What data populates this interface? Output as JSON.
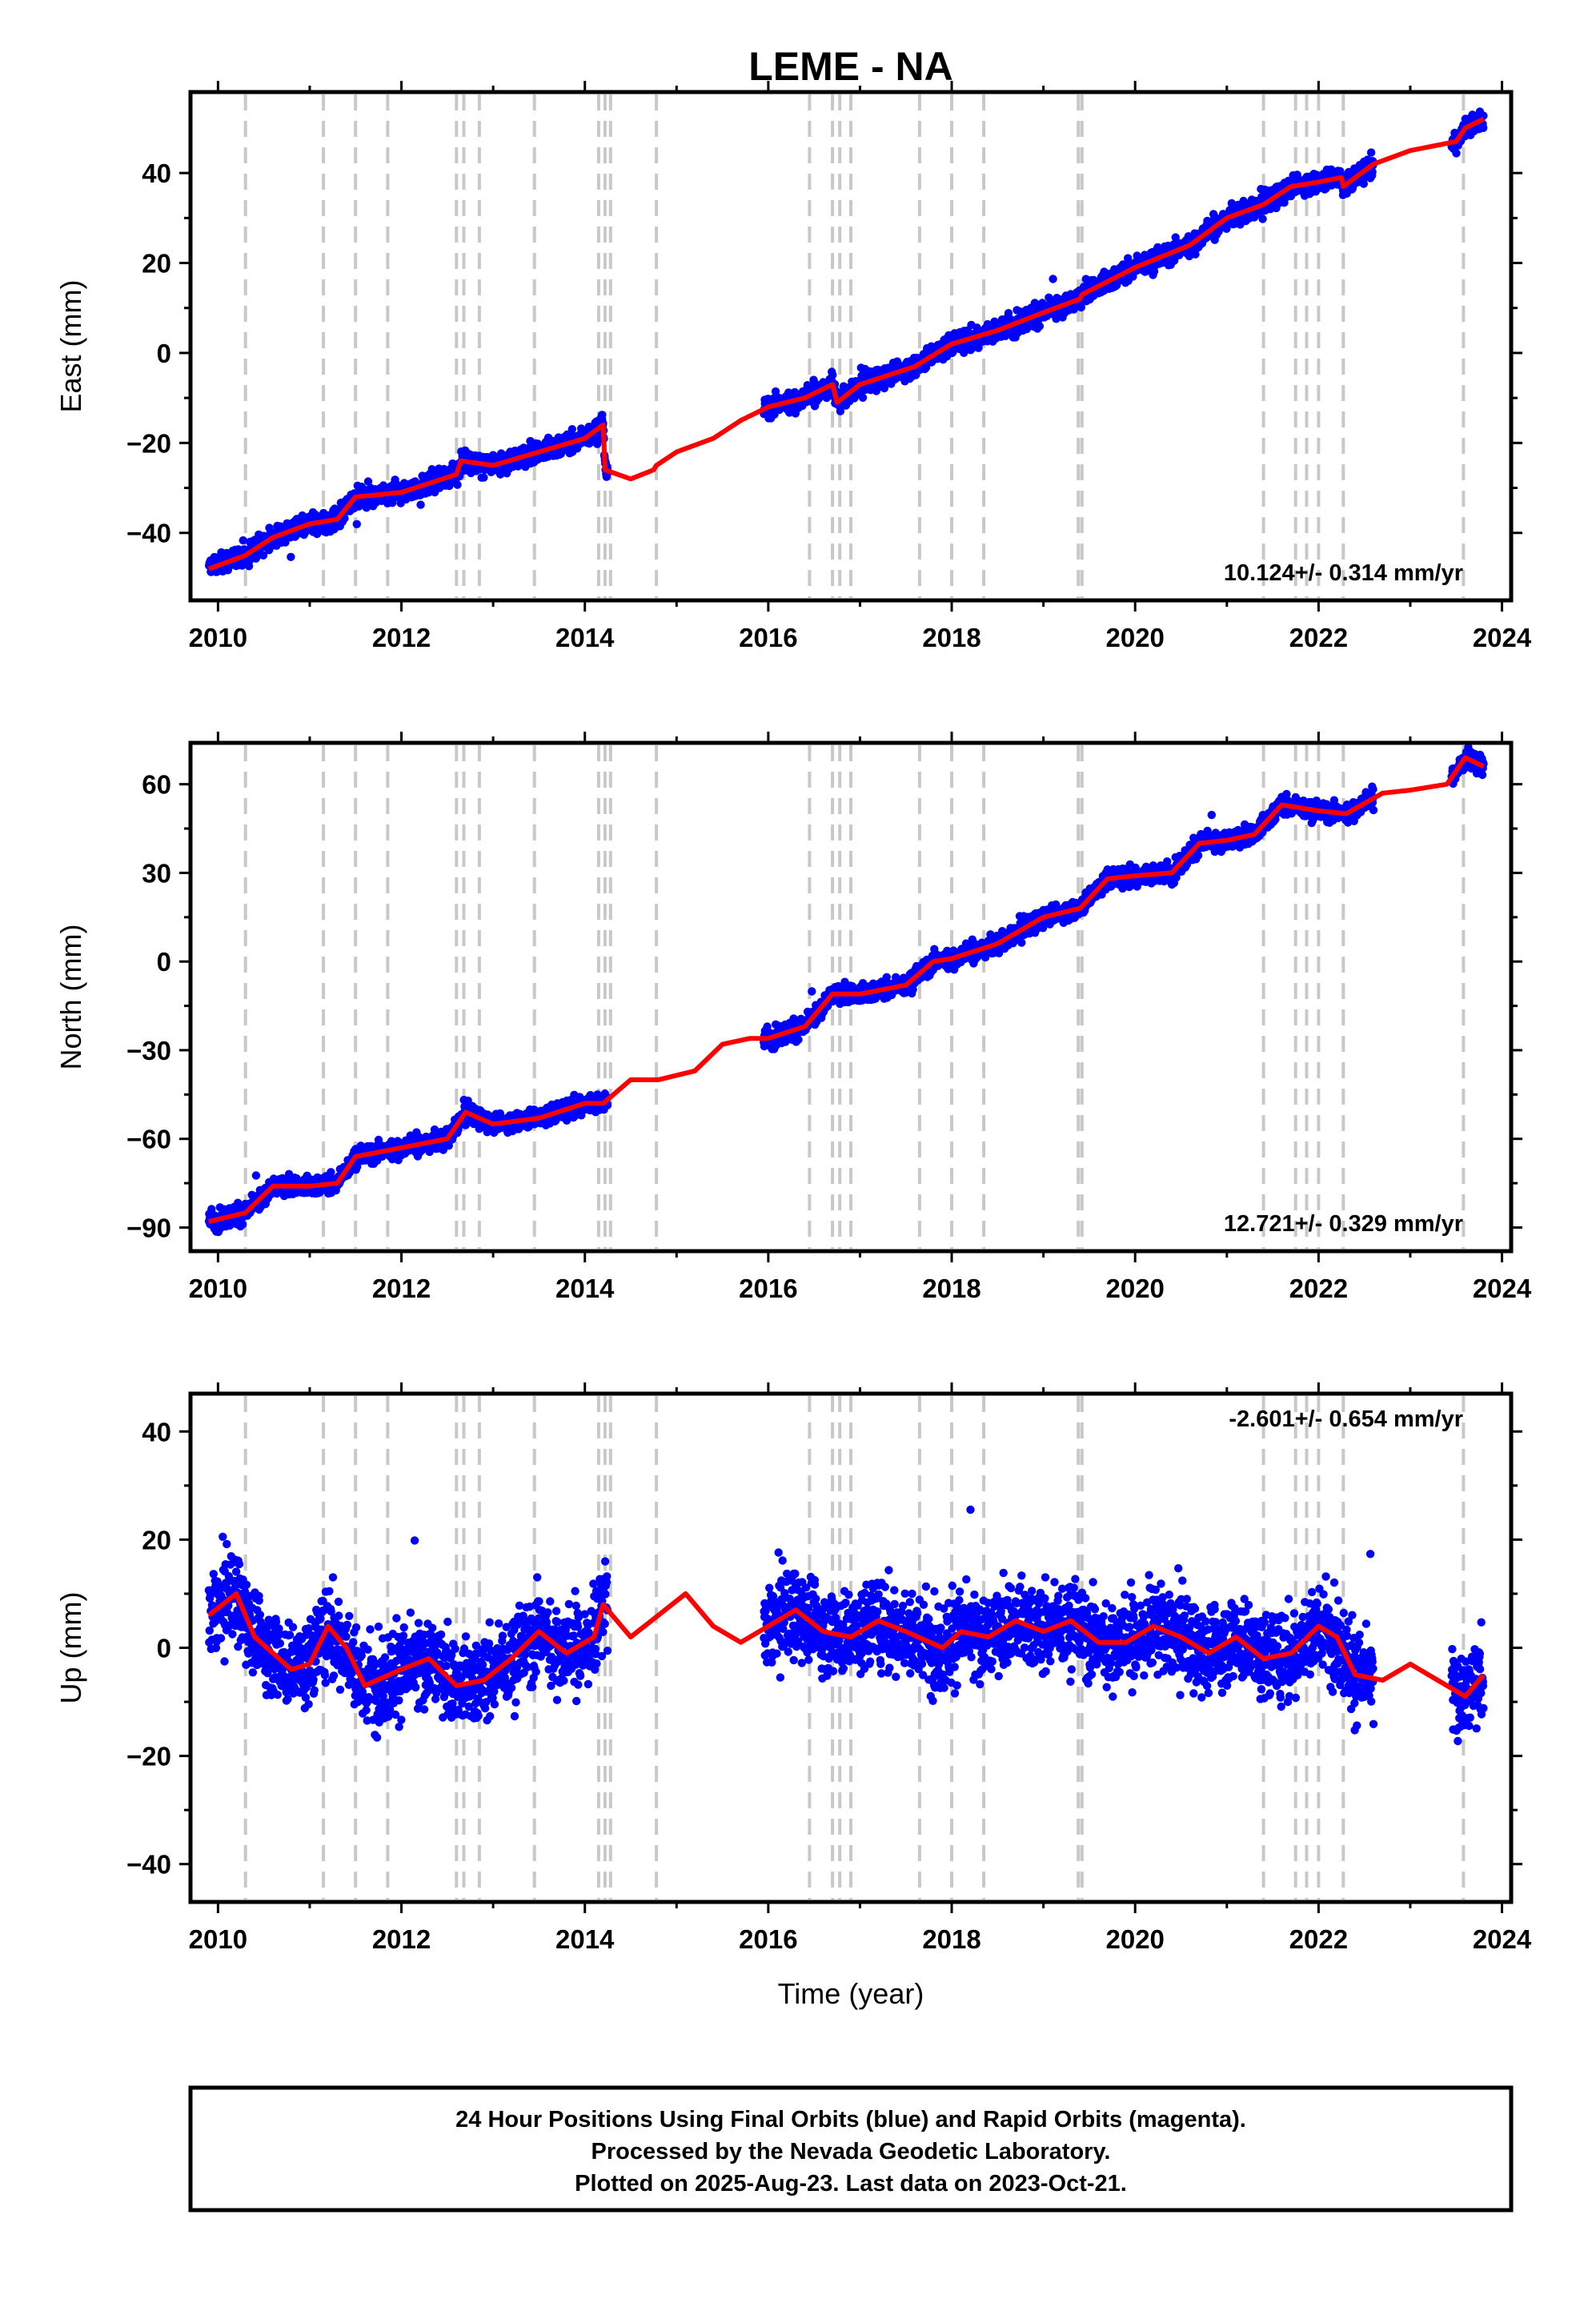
{
  "title": "LEME - NA",
  "xlabel": "Time (year)",
  "footer": {
    "line1": "24 Hour Positions Using Final Orbits (blue) and Rapid Orbits (magenta).",
    "line2": "Processed by the Nevada Geodetic Laboratory.",
    "line3": "Plotted on 2025-Aug-23. Last data on 2023-Oct-21."
  },
  "colors": {
    "data": "#0000ff",
    "model": "#ff0000",
    "steps": "#c8c8c8"
  },
  "chart_data": [
    {
      "type": "scatter",
      "component": "east",
      "ylabel": "East (mm)",
      "rate_label": "10.124+/- 0.314 mm/yr",
      "xlim": [
        2009.7,
        2024.1
      ],
      "ylim": [
        -55,
        58
      ],
      "xticks": [
        2010,
        2012,
        2014,
        2016,
        2018,
        2020,
        2022,
        2024
      ],
      "yticks": [
        -40,
        -20,
        0,
        20,
        40
      ],
      "grid": false,
      "data_segments": [
        [
          2009.9,
          2014.25
        ],
        [
          2015.95,
          2022.6
        ],
        [
          2023.45,
          2023.8
        ]
      ],
      "series": [
        {
          "name": "",
          "kind": "model",
          "x": [
            2009.9,
            2010.3,
            2010.6,
            2011.0,
            2011.3,
            2011.5,
            2012.0,
            2012.6,
            2012.65,
            2013.0,
            2013.5,
            2014.0,
            2014.2,
            2014.22,
            2014.5,
            2014.75,
            2014.78,
            2015.0,
            2015.4,
            2015.7,
            2016.0,
            2016.4,
            2016.7,
            2016.75,
            2017.0,
            2017.6,
            2018.0,
            2018.5,
            2019.0,
            2019.4,
            2019.42,
            2020.0,
            2020.6,
            2021.0,
            2021.4,
            2021.7,
            2022.0,
            2022.25,
            2022.27,
            2022.6,
            2023.0,
            2023.5,
            2023.6,
            2023.8
          ],
          "y": [
            -48,
            -45,
            -41,
            -38,
            -37,
            -32,
            -31,
            -27,
            -24,
            -25,
            -22,
            -19,
            -16,
            -26,
            -28,
            -26,
            -25,
            -22,
            -19,
            -15,
            -12,
            -10,
            -7,
            -11,
            -7,
            -3,
            2,
            5,
            9,
            12,
            13,
            19,
            24,
            30,
            33,
            37,
            38,
            39,
            37,
            42,
            45,
            47,
            50,
            52
          ]
        }
      ]
    },
    {
      "type": "scatter",
      "component": "north",
      "ylabel": "North (mm)",
      "rate_label": "12.721+/- 0.329 mm/yr",
      "xlim": [
        2009.7,
        2024.1
      ],
      "ylim": [
        -98,
        74
      ],
      "xticks": [
        2010,
        2012,
        2014,
        2016,
        2018,
        2020,
        2022,
        2024
      ],
      "yticks": [
        -90,
        -60,
        -30,
        0,
        30,
        60
      ],
      "grid": false,
      "data_segments": [
        [
          2009.9,
          2014.25
        ],
        [
          2015.95,
          2022.6
        ],
        [
          2023.45,
          2023.8
        ]
      ],
      "series": [
        {
          "name": "",
          "kind": "model",
          "x": [
            2009.9,
            2010.3,
            2010.6,
            2011.0,
            2011.3,
            2011.5,
            2012.0,
            2012.5,
            2012.7,
            2013.0,
            2013.5,
            2014.0,
            2014.2,
            2014.5,
            2014.8,
            2015.2,
            2015.5,
            2015.8,
            2016.0,
            2016.4,
            2016.7,
            2017.0,
            2017.5,
            2017.8,
            2018.0,
            2018.5,
            2019.0,
            2019.4,
            2019.7,
            2020.0,
            2020.4,
            2020.7,
            2021.0,
            2021.3,
            2021.6,
            2022.0,
            2022.3,
            2022.7,
            2023.0,
            2023.4,
            2023.6,
            2023.8
          ],
          "y": [
            -88,
            -85,
            -76,
            -76,
            -75,
            -66,
            -63,
            -60,
            -51,
            -55,
            -53,
            -48,
            -48,
            -40,
            -40,
            -37,
            -28,
            -26,
            -26,
            -22,
            -11,
            -11,
            -8,
            0,
            1,
            6,
            15,
            18,
            28,
            29,
            30,
            40,
            41,
            43,
            53,
            51,
            50,
            57,
            58,
            60,
            69,
            66
          ]
        }
      ]
    },
    {
      "type": "scatter",
      "component": "up",
      "ylabel": "Up (mm)",
      "rate_label": "-2.601+/- 0.654 mm/yr",
      "xlim": [
        2009.7,
        2024.1
      ],
      "ylim": [
        -47,
        47
      ],
      "xticks": [
        2010,
        2012,
        2014,
        2016,
        2018,
        2020,
        2022,
        2024
      ],
      "yticks": [
        -40,
        -20,
        0,
        20,
        40
      ],
      "grid": false,
      "data_segments": [
        [
          2009.9,
          2014.25
        ],
        [
          2015.95,
          2022.6
        ],
        [
          2023.45,
          2023.8
        ]
      ],
      "series": [
        {
          "name": "",
          "kind": "model",
          "x": [
            2009.9,
            2010.2,
            2010.4,
            2010.8,
            2011.0,
            2011.2,
            2011.4,
            2011.6,
            2012.0,
            2012.3,
            2012.6,
            2012.9,
            2013.2,
            2013.5,
            2013.8,
            2014.1,
            2014.2,
            2014.5,
            2014.8,
            2015.1,
            2015.4,
            2015.7,
            2016.0,
            2016.3,
            2016.6,
            2016.9,
            2017.2,
            2017.5,
            2017.9,
            2018.1,
            2018.4,
            2018.7,
            2019.0,
            2019.3,
            2019.6,
            2019.9,
            2020.2,
            2020.5,
            2020.8,
            2021.1,
            2021.4,
            2021.7,
            2022.0,
            2022.2,
            2022.4,
            2022.7,
            2023.0,
            2023.3,
            2023.6,
            2023.8
          ],
          "y": [
            6,
            10,
            2,
            -4,
            -3,
            4,
            0,
            -7,
            -4,
            -2,
            -7,
            -6,
            -2,
            3,
            -1,
            2,
            8,
            2,
            6,
            10,
            4,
            1,
            4,
            7,
            3,
            2,
            5,
            3,
            0,
            3,
            2,
            5,
            3,
            5,
            1,
            1,
            4,
            2,
            -1,
            2,
            -2,
            -1,
            4,
            2,
            -5,
            -6,
            -3,
            -6,
            -9,
            -5
          ]
        }
      ]
    }
  ],
  "step_epochs": [
    2010.3,
    2011.15,
    2011.5,
    2011.85,
    2012.6,
    2012.68,
    2012.85,
    2013.45,
    2014.15,
    2014.22,
    2014.28,
    2014.78,
    2016.45,
    2016.7,
    2016.78,
    2016.9,
    2017.65,
    2018.0,
    2018.35,
    2019.38,
    2019.42,
    2021.4,
    2021.75,
    2021.87,
    2022.0,
    2022.27,
    2023.58
  ]
}
